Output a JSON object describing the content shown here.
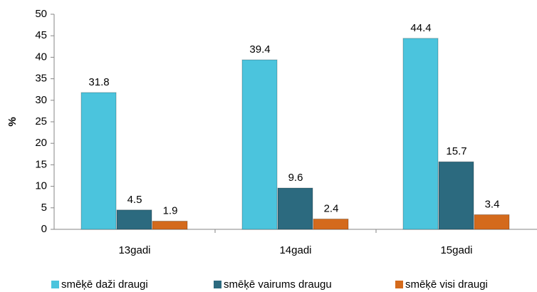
{
  "chart_data": {
    "type": "bar",
    "y_label": "%",
    "categories": [
      "13gadi",
      "14gadi",
      "15gadi"
    ],
    "series": [
      {
        "name": "smēķē daži draugi",
        "color": "#4bc4dd",
        "values": [
          31.8,
          39.4,
          44.4
        ]
      },
      {
        "name": "smēķē vairums draugu",
        "color": "#2c6a7f",
        "values": [
          4.5,
          9.6,
          15.7
        ]
      },
      {
        "name": "smēķē visi draugi",
        "color": "#d46a1c",
        "values": [
          1.9,
          2.4,
          3.4
        ]
      }
    ],
    "ylim": [
      0,
      50
    ],
    "yticks": [
      0,
      5,
      10,
      15,
      20,
      25,
      30,
      35,
      40,
      45,
      50
    ],
    "grid": false,
    "legend": "bottom"
  }
}
